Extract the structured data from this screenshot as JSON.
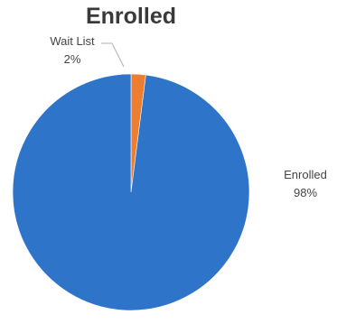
{
  "chart_data": {
    "type": "pie",
    "title": "Enrolled",
    "slices": [
      {
        "label": "Wait List",
        "value": 2,
        "value_label": "2%",
        "color": "#ED7D31"
      },
      {
        "label": "Enrolled",
        "value": 98,
        "value_label": "98%",
        "color": "#2E75C9"
      }
    ],
    "start": "top, clockwise"
  }
}
